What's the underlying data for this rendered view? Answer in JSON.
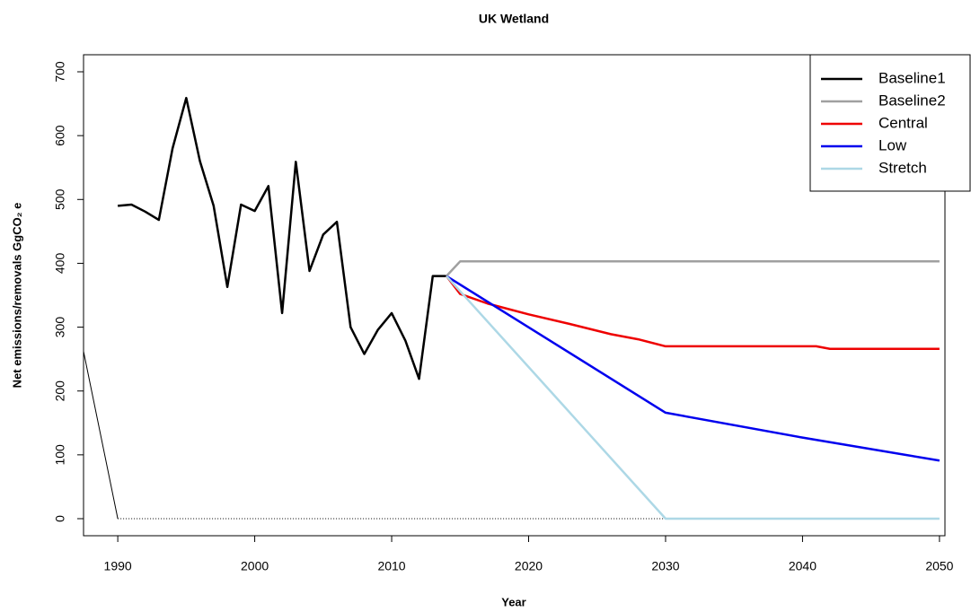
{
  "chart_data": {
    "type": "line",
    "title": "UK Wetland",
    "x_label": "Year",
    "y_label": "Net emissions/removals GgCO₂ e",
    "xlim": [
      1987.5,
      2050.4
    ],
    "ylim": [
      -26.7,
      726.7
    ],
    "xticks": [
      1990,
      2000,
      2010,
      2020,
      2030,
      2040,
      2050
    ],
    "yticks": [
      0,
      100,
      200,
      300,
      400,
      500,
      600,
      700
    ],
    "legend": "topright",
    "series": [
      {
        "name": "Baseline1",
        "color": "#000000",
        "x": [
          1990,
          1991,
          1992,
          1993,
          1994,
          1995,
          1996,
          1997,
          1998,
          1999,
          2000,
          2001,
          2002,
          2003,
          2004,
          2005,
          2006,
          2007,
          2008,
          2009,
          2010,
          2011,
          2012,
          2013,
          2014
        ],
        "values": [
          490,
          492,
          481,
          468,
          580,
          659,
          560,
          490,
          363,
          492,
          482,
          521,
          322,
          559,
          388,
          445,
          465,
          300,
          258,
          296,
          322,
          279,
          219,
          380,
          380
        ]
      },
      {
        "name": "Baseline2",
        "color": "#a0a0a0",
        "x": [
          2014,
          2015,
          2050
        ],
        "values": [
          380,
          403,
          403
        ]
      },
      {
        "name": "Central",
        "color": "#ee0000",
        "x": [
          2014,
          2015,
          2017,
          2020,
          2023,
          2026,
          2028,
          2030,
          2041,
          2042,
          2050
        ],
        "values": [
          380,
          352,
          337,
          320,
          305,
          289,
          281,
          270,
          270,
          266,
          266
        ]
      },
      {
        "name": "Low",
        "color": "#0000ee",
        "x": [
          2014,
          2030,
          2040,
          2050
        ],
        "values": [
          380,
          166,
          127,
          91
        ]
      },
      {
        "name": "Stretch",
        "color": "#add8e6",
        "x": [
          2014,
          2030,
          2050
        ],
        "values": [
          380,
          0,
          0
        ]
      }
    ],
    "extra_lines": [
      {
        "x": [
          1987.5,
          1990
        ],
        "values": [
          262,
          0
        ],
        "color": "#000000",
        "style": "solid"
      },
      {
        "x": [
          1990,
          2050
        ],
        "values": [
          0,
          0
        ],
        "color": "#000000",
        "style": "dotted"
      }
    ]
  }
}
